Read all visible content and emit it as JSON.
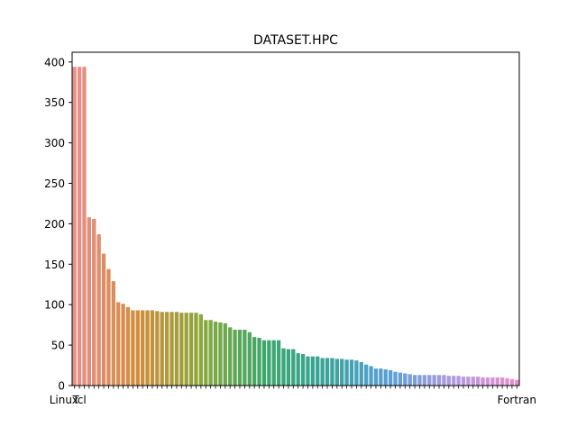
{
  "chart_data": {
    "type": "bar",
    "title": "DATASET.HPC",
    "xlabel": "",
    "ylabel": "",
    "ylim": [
      0,
      412
    ],
    "yticks": [
      0,
      50,
      100,
      150,
      200,
      250,
      300,
      350,
      400
    ],
    "grid": false,
    "legend": "none",
    "x_tick_labels_visible": [
      "Linux",
      "Tcl",
      "Fortran"
    ],
    "values": [
      394,
      394,
      394,
      208,
      206,
      187,
      163,
      144,
      129,
      103,
      101,
      97,
      93,
      93,
      93,
      93,
      93,
      92,
      91,
      91,
      91,
      91,
      90,
      90,
      90,
      90,
      88,
      81,
      81,
      79,
      78,
      77,
      72,
      69,
      69,
      69,
      66,
      60,
      59,
      56,
      56,
      56,
      56,
      46,
      45,
      45,
      40,
      39,
      36,
      36,
      36,
      34,
      34,
      34,
      33,
      33,
      32,
      32,
      31,
      29,
      26,
      24,
      21,
      21,
      20,
      19,
      17,
      16,
      15,
      14,
      13,
      13,
      13,
      13,
      13,
      13,
      13,
      12,
      12,
      12,
      11,
      11,
      11,
      11,
      10,
      10,
      10,
      10,
      10,
      9,
      8,
      7
    ]
  },
  "colors": {
    "bar_start": "#e8908d",
    "bar_mid1": "#d28c3a",
    "bar_mid2": "#8ca83c",
    "bar_mid3": "#3da76b",
    "bar_mid4": "#3aa39c",
    "bar_mid5": "#5aa0d8",
    "bar_mid6": "#b39ae0",
    "bar_end": "#e88fcf",
    "axis": "#000000"
  }
}
